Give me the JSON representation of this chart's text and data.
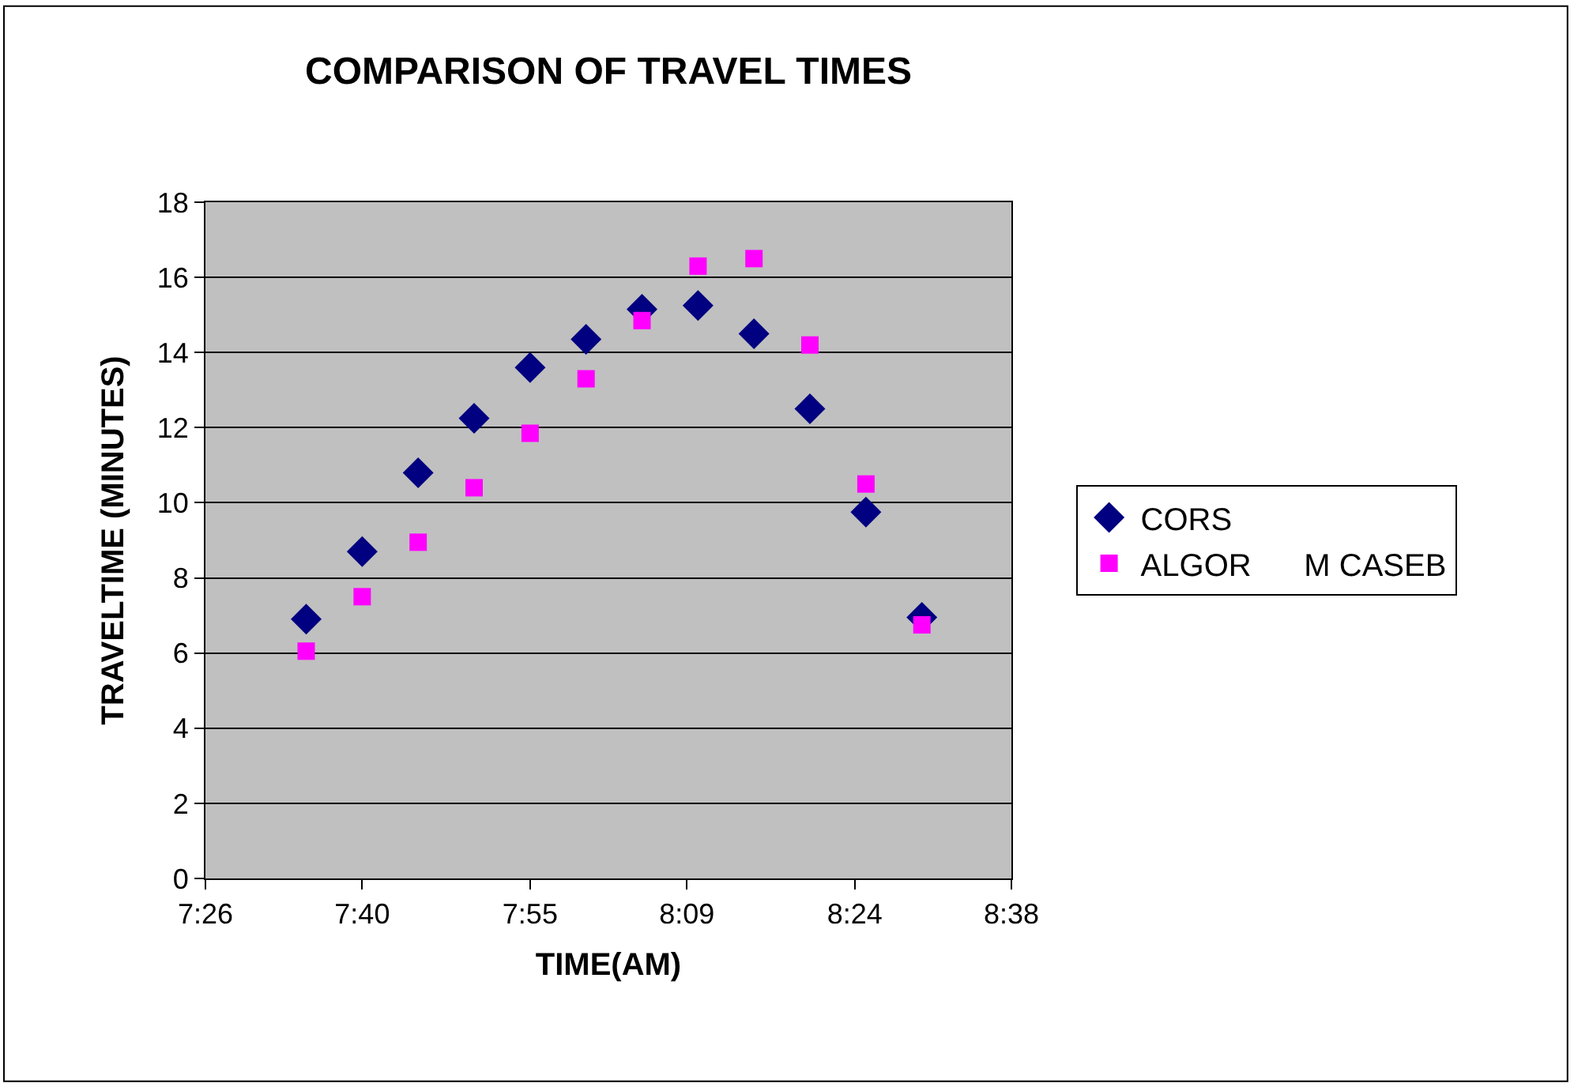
{
  "chart_data": {
    "type": "scatter",
    "title": "COMPARISON OF TRAVEL TIMES",
    "xlabel": "TIME(AM)",
    "ylabel": "TRAVELTIME (MINUTES)",
    "x": [
      7.5833,
      7.6667,
      7.75,
      7.8333,
      7.9167,
      8.0,
      8.0833,
      8.1667,
      8.25,
      8.3333,
      8.4167,
      8.5
    ],
    "series": [
      {
        "name": "CORS",
        "color": "#000080",
        "marker": "diamond",
        "values": [
          6.9,
          8.7,
          10.8,
          12.25,
          13.6,
          14.35,
          15.15,
          15.25,
          14.5,
          12.5,
          9.75,
          6.95
        ]
      },
      {
        "name": "ALGOR      M CASEB",
        "color": "#ff00ff",
        "marker": "square",
        "values": [
          6.05,
          7.5,
          8.95,
          10.4,
          11.85,
          13.3,
          14.85,
          16.3,
          16.5,
          14.2,
          10.5,
          6.75
        ]
      }
    ],
    "xlim": [
      7.4333,
      8.6333
    ],
    "xticks": [
      {
        "value": 7.4333,
        "label": "7:26"
      },
      {
        "value": 7.6667,
        "label": "7:40"
      },
      {
        "value": 7.9167,
        "label": "7:55"
      },
      {
        "value": 8.15,
        "label": "8:09"
      },
      {
        "value": 8.4,
        "label": "8:24"
      },
      {
        "value": 8.6333,
        "label": "8:38"
      }
    ],
    "ylim": [
      0,
      18
    ],
    "yticks": [
      0,
      2,
      4,
      6,
      8,
      10,
      12,
      14,
      16,
      18
    ],
    "grid": "y",
    "legend": "right"
  }
}
